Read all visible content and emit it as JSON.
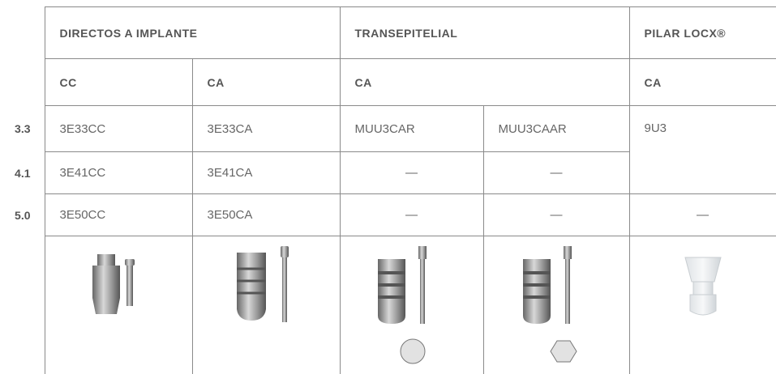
{
  "header": [
    "DIRECTOS A IMPLANTE",
    "TRANSEPITELIAL",
    "PILAR LOCX®"
  ],
  "subheader": [
    "CC",
    "CA",
    "CA",
    "CA"
  ],
  "rows": [
    {
      "label": "3.3",
      "cells": [
        "3E33CC",
        "3E33CA",
        "MUU3CAR",
        "MUU3CAAR",
        "9U3"
      ]
    },
    {
      "label": "4.1",
      "cells": [
        "3E41CC",
        "3E41CA",
        "—",
        "—"
      ]
    },
    {
      "label": "5.0",
      "cells": [
        "3E50CC",
        "3E50CA",
        "—",
        "—",
        "—"
      ]
    }
  ]
}
